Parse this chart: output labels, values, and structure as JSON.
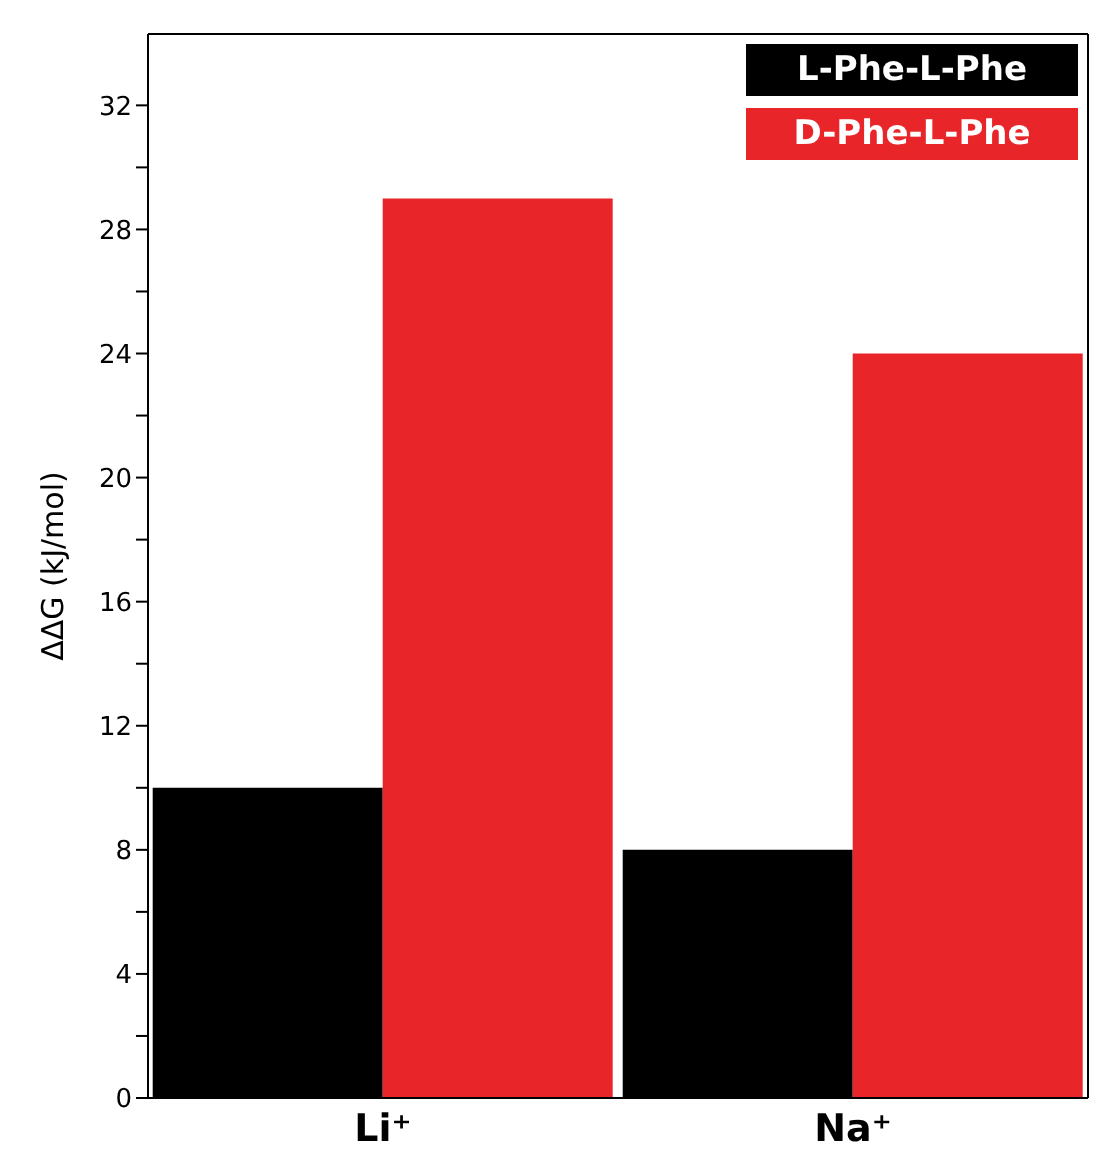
{
  "chart_data": {
    "type": "bar",
    "ylabel": "ΔΔG (kJ/mol)",
    "categories": [
      "Li⁺",
      "Na⁺"
    ],
    "series": [
      {
        "name": "L-Phe-L-Phe",
        "color": "#000000",
        "values": [
          10,
          8
        ]
      },
      {
        "name": "D-Phe-L-Phe",
        "color": "#e8262a",
        "values": [
          29,
          24
        ]
      }
    ],
    "ylim": [
      0,
      34.3
    ],
    "yticks": [
      0,
      {
        "value": 2,
        "label": null
      },
      4,
      {
        "value": 6,
        "label": null
      },
      8,
      {
        "value": 10,
        "label": null
      },
      12,
      {
        "value": 14,
        "label": null
      },
      16,
      {
        "value": 18,
        "label": null
      },
      20,
      {
        "value": 22,
        "label": null
      },
      24,
      {
        "value": 26,
        "label": null
      },
      28,
      {
        "value": 30,
        "label": null
      },
      32
    ],
    "legend": "top right"
  }
}
